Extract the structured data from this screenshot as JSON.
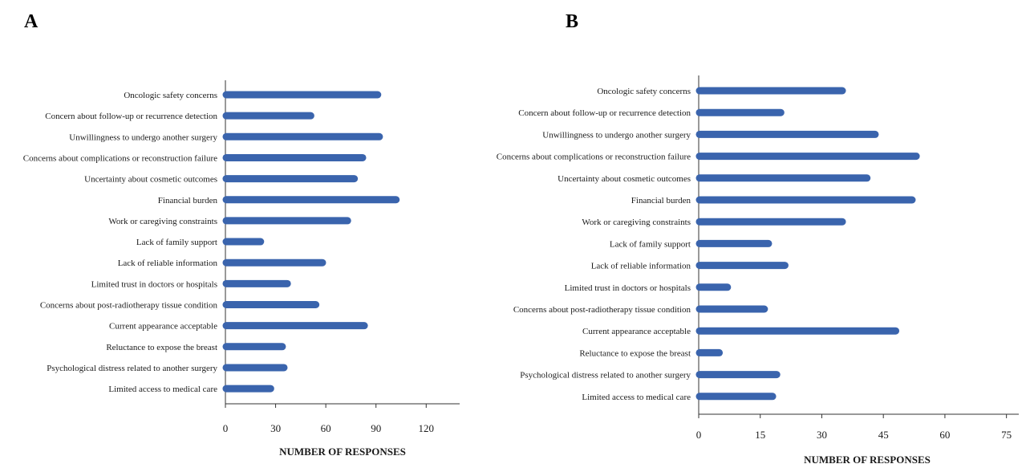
{
  "chart_data": [
    {
      "type": "bar",
      "orientation": "horizontal",
      "panel_label": "A",
      "categories": [
        "Oncologic safety concerns",
        "Concern about follow-up or recurrence detection",
        "Unwillingness to undergo another surgery",
        "Concerns about complications or reconstruction failure",
        "Uncertainty about cosmetic outcomes",
        "Financial burden",
        "Work or caregiving constraints",
        "Lack of family support",
        "Lack of reliable information",
        "Limited trust in doctors or hospitals",
        "Concerns about post-radiotherapy tissue condition",
        "Current appearance acceptable",
        "Reluctance to expose the breast",
        "Psychological distress related to another surgery",
        "Limited access to medical care"
      ],
      "values": [
        91,
        51,
        92,
        82,
        77,
        102,
        73,
        21,
        58,
        37,
        54,
        83,
        34,
        35,
        27
      ],
      "xlabel": "NUMBER OF RESPONSES",
      "xlim": [
        0,
        140
      ],
      "xticks": [
        0,
        30,
        60,
        90,
        120
      ],
      "color": "#3a64ad",
      "grid": false
    },
    {
      "type": "bar",
      "orientation": "horizontal",
      "panel_label": "B",
      "categories": [
        "Oncologic safety concerns",
        "Concern about follow-up or recurrence detection",
        "Unwillingness to undergo another surgery",
        "Concerns about complications or reconstruction failure",
        "Uncertainty about cosmetic outcomes",
        "Financial burden",
        "Work or caregiving constraints",
        "Lack of family support",
        "Lack of reliable information",
        "Limited trust in doctors or hospitals",
        "Concerns about post-radiotherapy tissue condition",
        "Current appearance acceptable",
        "Reluctance to expose the breast",
        "Psychological distress related to another surgery",
        "Limited access to medical care"
      ],
      "values": [
        35,
        20,
        43,
        53,
        41,
        52,
        35,
        17,
        21,
        7,
        16,
        48,
        5,
        19,
        18
      ],
      "xlabel": "NUMBER OF RESPONSES",
      "xlim": [
        0,
        78
      ],
      "xticks": [
        0,
        15,
        30,
        45,
        60,
        75
      ],
      "color": "#3a64ad",
      "grid": false
    }
  ]
}
